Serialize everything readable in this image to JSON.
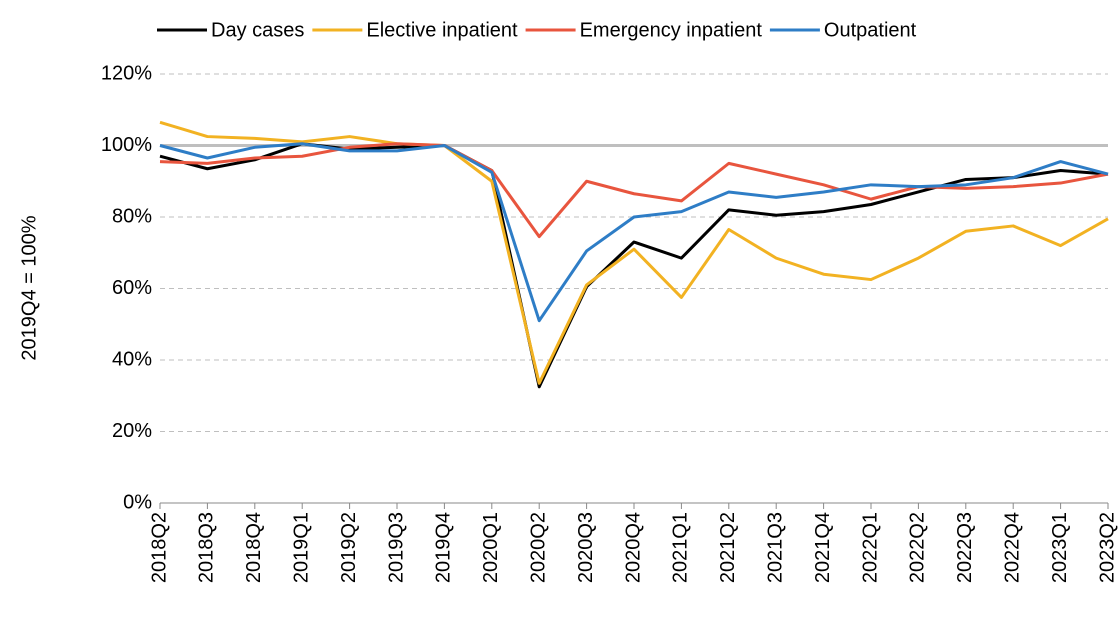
{
  "chart_data": {
    "type": "line",
    "y_label": "2019Q4 = 100%",
    "categories": [
      "2018Q2",
      "2018Q3",
      "2018Q4",
      "2019Q1",
      "2019Q2",
      "2019Q3",
      "2019Q4",
      "2020Q1",
      "2020Q2",
      "2020Q3",
      "2020Q4",
      "2021Q1",
      "2021Q2",
      "2021Q3",
      "2021Q4",
      "2022Q1",
      "2022Q2",
      "2022Q3",
      "2022Q4",
      "2023Q1",
      "2023Q2"
    ],
    "series": [
      {
        "name": "Day cases",
        "color": "#000000",
        "values": [
          97,
          93.5,
          96,
          100.5,
          99,
          99.5,
          100,
          93,
          32.5,
          60.5,
          73,
          68.5,
          82,
          80.5,
          81.5,
          83.5,
          87,
          90.5,
          91,
          93,
          92
        ]
      },
      {
        "name": "Elective inpatient",
        "color": "#f2b222",
        "values": [
          106.5,
          102.5,
          102,
          101,
          102.5,
          100.5,
          100,
          90,
          33.5,
          61,
          71,
          57.5,
          76.5,
          68.5,
          64,
          62.5,
          68.5,
          76,
          77.5,
          72,
          79.5
        ]
      },
      {
        "name": "Emergency inpatient",
        "color": "#e8553e",
        "values": [
          95.5,
          95,
          96.5,
          97,
          99.5,
          100.5,
          100,
          93,
          74.5,
          90,
          86.5,
          84.5,
          95,
          92,
          89,
          85,
          88.5,
          88,
          88.5,
          89.5,
          92
        ]
      },
      {
        "name": "Outpatient",
        "color": "#2e7dc6",
        "values": [
          100,
          96.5,
          99.5,
          100.5,
          98.5,
          98.5,
          100,
          92.5,
          51,
          70.5,
          80,
          81.5,
          87,
          85.5,
          87,
          89,
          88.5,
          89,
          91,
          95.5,
          92
        ]
      }
    ],
    "ylim": [
      0,
      120
    ],
    "yticks": [
      {
        "value": 0,
        "label": "0%"
      },
      {
        "value": 20,
        "label": "20%"
      },
      {
        "value": 40,
        "label": "40%"
      },
      {
        "value": 60,
        "label": "60%"
      },
      {
        "value": 80,
        "label": "80%"
      },
      {
        "value": 100,
        "label": "100%"
      },
      {
        "value": 120,
        "label": "120%"
      }
    ],
    "grid": true,
    "reference_line": 100,
    "legend": "top"
  }
}
